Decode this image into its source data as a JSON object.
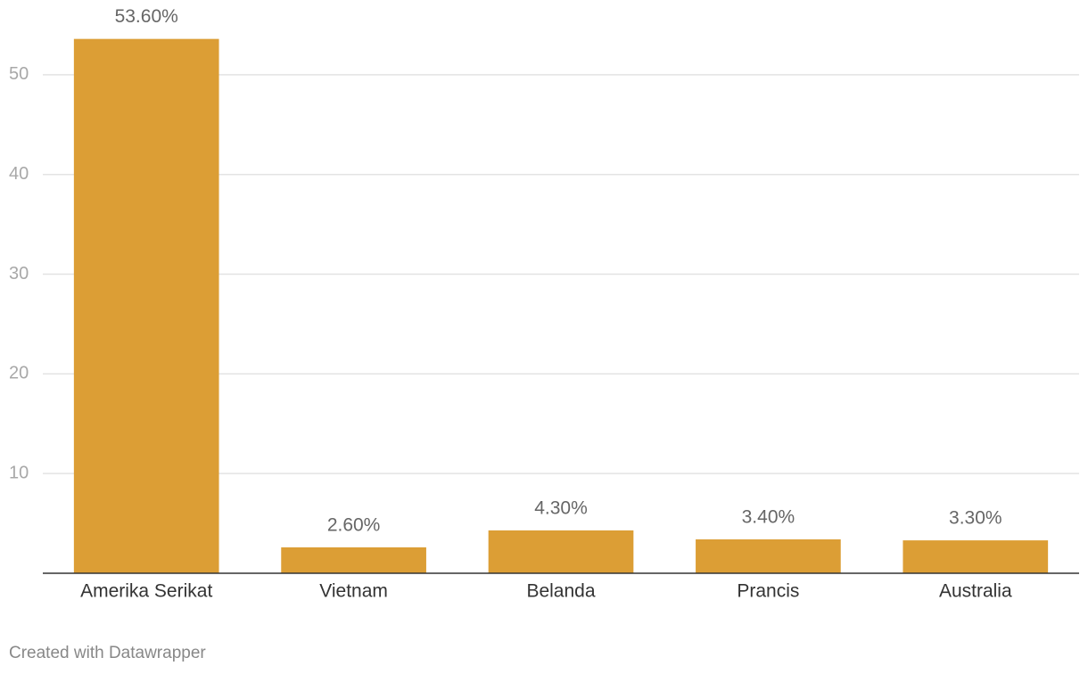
{
  "chart_data": {
    "type": "bar",
    "categories": [
      "Amerika Serikat",
      "Vietnam",
      "Belanda",
      "Prancis",
      "Australia"
    ],
    "values": [
      53.6,
      2.6,
      4.3,
      3.4,
      3.3
    ],
    "value_labels": [
      "53.60%",
      "2.60%",
      "4.30%",
      "3.40%",
      "3.30%"
    ],
    "color": "#dc9e35",
    "ylim": [
      0,
      55
    ],
    "yticks": [
      10,
      20,
      30,
      40,
      50
    ],
    "grid": true
  },
  "footer": "Created with Datawrapper"
}
